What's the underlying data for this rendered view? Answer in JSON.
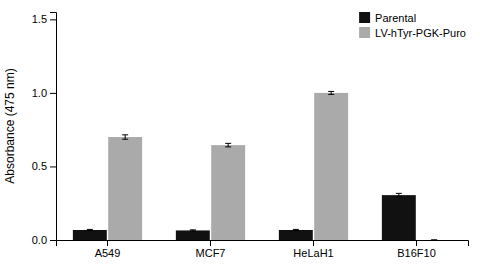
{
  "chart_data": {
    "type": "bar",
    "categories": [
      "A549",
      "MCF7",
      "HeLaH1",
      "B16F10"
    ],
    "series": [
      {
        "name": "Parental",
        "color": "#111111",
        "values": [
          0.068,
          0.065,
          0.068,
          0.305
        ],
        "errors": [
          0.004,
          0.004,
          0.004,
          0.012
        ]
      },
      {
        "name": "LV-hTyr-PGK-Puro",
        "color": "#aaaaaa",
        "values": [
          0.7,
          0.645,
          1.0,
          0.0
        ],
        "errors": [
          0.015,
          0.012,
          0.01,
          0.0
        ]
      }
    ],
    "y_label": "Absorbance (475 nm)",
    "ylim": [
      0,
      1.55
    ],
    "yticks": [
      {
        "value": 0,
        "label": "0.0"
      },
      0.5,
      {
        "value": 1,
        "label": "1.0"
      },
      1.5
    ],
    "legend": "upper right",
    "grid": false
  }
}
